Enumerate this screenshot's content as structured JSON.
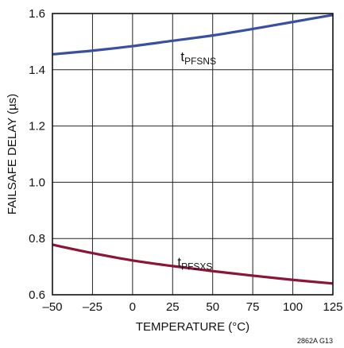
{
  "chart_data": {
    "type": "line",
    "title": "",
    "xlabel": "TEMPERATURE (°C)",
    "ylabel": "FAILSAFE DELAY (µs)",
    "xlim": [
      -50,
      125
    ],
    "ylim": [
      0.6,
      1.6
    ],
    "x_ticks": [
      -50,
      -25,
      0,
      25,
      50,
      75,
      100,
      125
    ],
    "y_ticks": [
      0.6,
      0.8,
      1.0,
      1.2,
      1.4,
      1.6
    ],
    "x_tick_labels": [
      "–50",
      "–25",
      "0",
      "25",
      "50",
      "75",
      "100",
      "125"
    ],
    "y_tick_labels": [
      "0.6",
      "0.8",
      "1.0",
      "1.2",
      "1.4",
      "1.6"
    ],
    "grid": true,
    "series": [
      {
        "name": "tPFSNS",
        "label_main": "t",
        "label_sub": "PFSNS",
        "color": "#3b4fa0",
        "label_pos": [
          30,
          1.43
        ],
        "x": [
          -50,
          -25,
          0,
          25,
          50,
          75,
          100,
          125
        ],
        "y": [
          1.455,
          1.468,
          1.484,
          1.503,
          1.522,
          1.545,
          1.57,
          1.595
        ]
      },
      {
        "name": "tPFSXS",
        "label_main": "t",
        "label_sub": "PFSXS",
        "color": "#8a1538",
        "label_pos": [
          28,
          0.7
        ],
        "x": [
          -50,
          -25,
          0,
          25,
          50,
          75,
          100,
          125
        ],
        "y": [
          0.778,
          0.748,
          0.722,
          0.702,
          0.684,
          0.668,
          0.653,
          0.64
        ]
      }
    ],
    "figure_code": "2862A G13"
  }
}
